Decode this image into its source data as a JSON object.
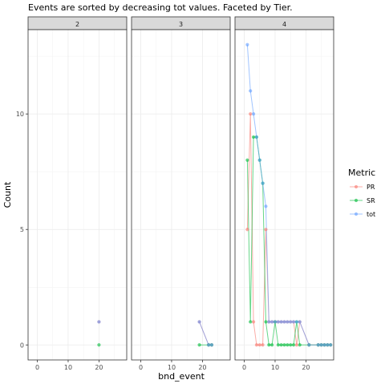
{
  "chart_data": {
    "type": "line",
    "title": "Events are sorted by decreasing tot values. Faceted by Tier.",
    "xlabel": "bnd_event",
    "ylabel": "Count",
    "facets": [
      "2",
      "3",
      "4"
    ],
    "xlim": [
      -3,
      29
    ],
    "ylim": [
      -0.65,
      13.65
    ],
    "xticks": [
      0,
      10,
      20
    ],
    "yticks": [
      0,
      5,
      10
    ],
    "grid": true,
    "legend": {
      "title": "Metric",
      "position": "right",
      "entries": [
        "PR",
        "SR",
        "tot"
      ]
    },
    "series_colors": {
      "PR": "#F8766D",
      "SR": "#00BA38",
      "tot": "#619CFF"
    },
    "panels": [
      {
        "facet": "2",
        "series": [
          {
            "name": "PR",
            "x": [
              20
            ],
            "y": [
              1
            ]
          },
          {
            "name": "SR",
            "x": [
              20
            ],
            "y": [
              0
            ]
          },
          {
            "name": "tot",
            "x": [
              20
            ],
            "y": [
              1
            ]
          }
        ]
      },
      {
        "facet": "3",
        "series": [
          {
            "name": "PR",
            "x": [
              19,
              22,
              23
            ],
            "y": [
              1,
              0,
              0
            ]
          },
          {
            "name": "SR",
            "x": [
              19,
              22,
              23
            ],
            "y": [
              0,
              0,
              0
            ]
          },
          {
            "name": "tot",
            "x": [
              19,
              22,
              23
            ],
            "y": [
              1,
              0,
              0
            ]
          }
        ]
      },
      {
        "facet": "4",
        "series": [
          {
            "name": "PR",
            "x": [
              1,
              2,
              3,
              4,
              5,
              6,
              7,
              8,
              9,
              10,
              11,
              12,
              13,
              14,
              15,
              16,
              17,
              18,
              21,
              24,
              25,
              26,
              27,
              28
            ],
            "y": [
              5,
              10,
              1,
              0,
              0,
              0,
              5,
              1,
              1,
              1,
              1,
              1,
              1,
              1,
              1,
              1,
              0,
              1,
              0,
              0,
              0,
              0,
              0,
              0
            ]
          },
          {
            "name": "SR",
            "x": [
              1,
              2,
              3,
              4,
              5,
              6,
              7,
              8,
              9,
              10,
              11,
              12,
              13,
              14,
              15,
              16,
              17,
              18,
              21,
              24,
              25,
              26,
              27,
              28
            ],
            "y": [
              8,
              1,
              9,
              9,
              8,
              7,
              1,
              0,
              0,
              1,
              0,
              0,
              0,
              0,
              0,
              0,
              1,
              0,
              0,
              0,
              0,
              0,
              0,
              0
            ]
          },
          {
            "name": "tot",
            "x": [
              1,
              2,
              3,
              4,
              5,
              6,
              7,
              8,
              9,
              10,
              11,
              12,
              13,
              14,
              15,
              16,
              17,
              18,
              21,
              24,
              25,
              26,
              27,
              28
            ],
            "y": [
              13,
              11,
              10,
              9,
              8,
              7,
              6,
              1,
              1,
              1,
              1,
              1,
              1,
              1,
              1,
              1,
              1,
              1,
              0,
              0,
              0,
              0,
              0,
              0
            ]
          }
        ]
      }
    ]
  }
}
